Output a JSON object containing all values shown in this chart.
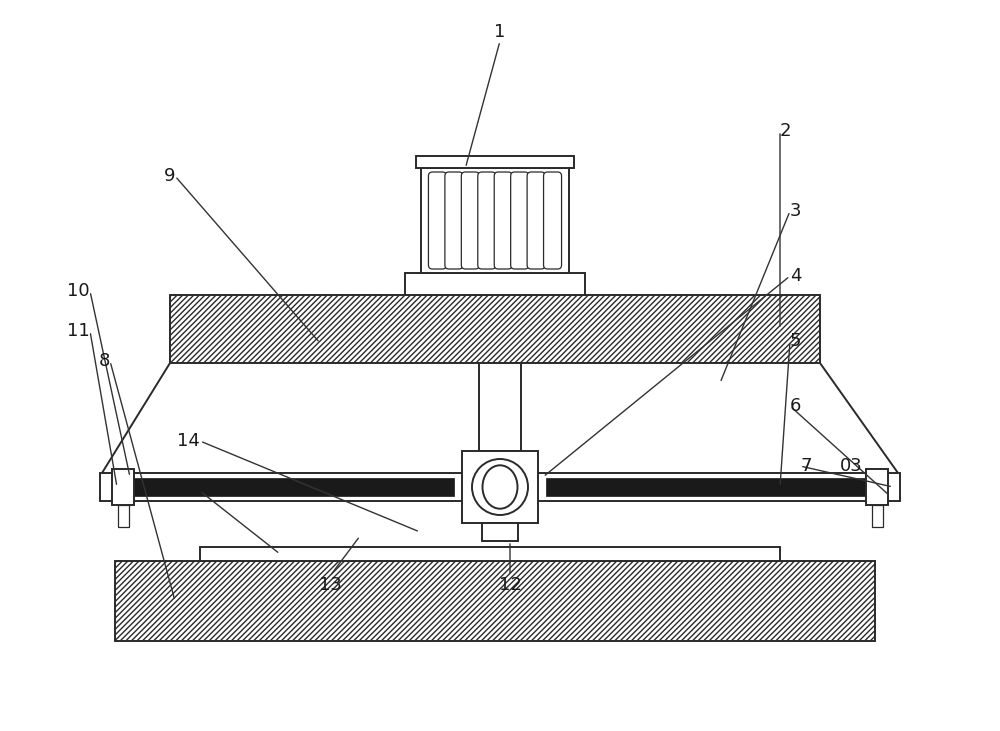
{
  "bg_color": "#ffffff",
  "line_color": "#2a2a2a",
  "fig_width": 10.0,
  "fig_height": 7.31,
  "dpi": 100,
  "motor_ribs": 8,
  "hatch_angle": "//////"
}
